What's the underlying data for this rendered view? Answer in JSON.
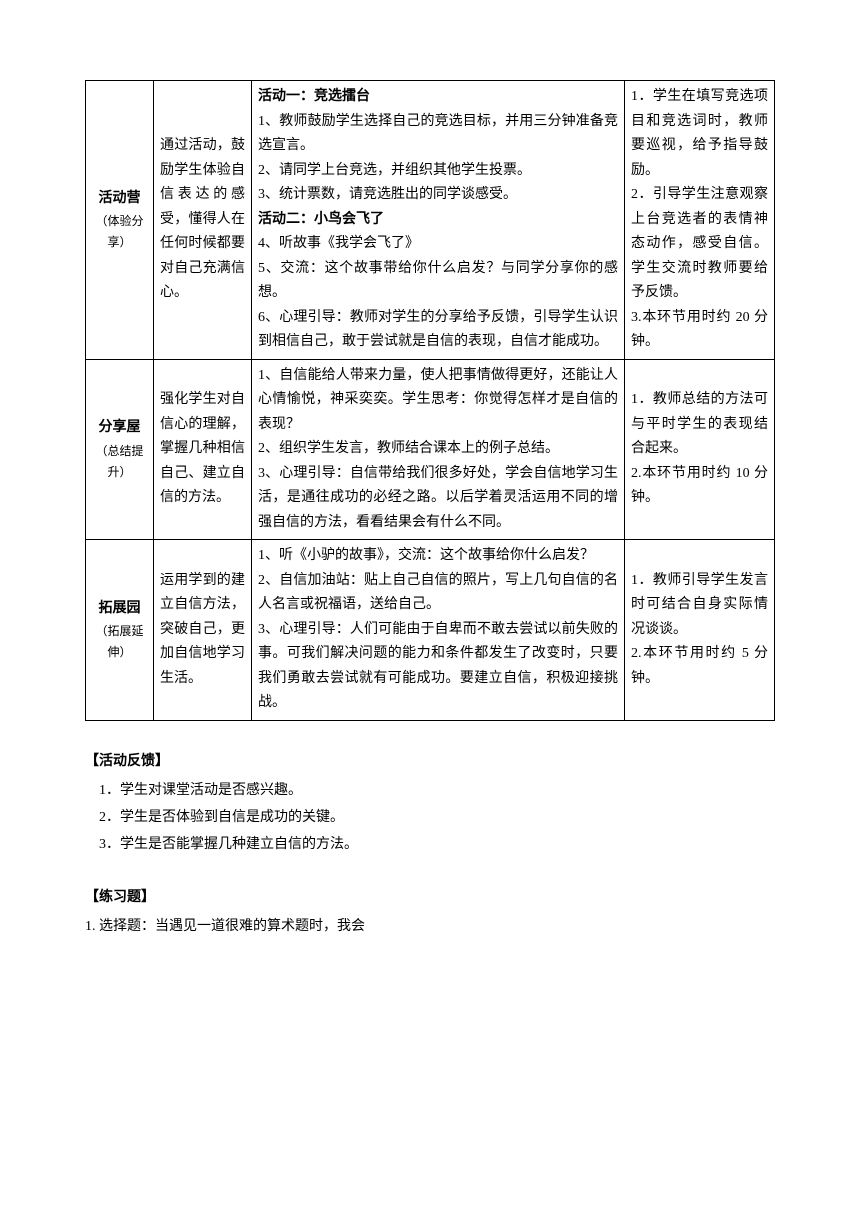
{
  "table": {
    "rows": [
      {
        "col1_title": "活动营",
        "col1_sub": "（体验分享）",
        "col2": "通过活动，鼓励学生体验自信表达的感受，懂得人在任何时候都要对自己充满信心。",
        "col3_act1_title": "活动一：竞选擂台",
        "col3_act1_1": "1、教师鼓励学生选择自己的竞选目标，并用三分钟准备竞选宣言。",
        "col3_act1_2": "2、请同学上台竞选，并组织其他学生投票。",
        "col3_act1_3": "3、统计票数，请竞选胜出的同学谈感受。",
        "col3_act2_title": "活动二：小鸟会飞了",
        "col3_act2_4": "4、听故事《我学会飞了》",
        "col3_act2_5": "5、交流：这个故事带给你什么启发？与同学分享你的感想。",
        "col3_act2_6": "6、心理引导：教师对学生的分享给予反馈，引导学生认识到相信自己，敢于尝试就是自信的表现，自信才能成功。",
        "col4_1": "1．学生在填写竞选项目和竞选词时，教师要巡视，给予指导鼓励。",
        "col4_2": "2．引导学生注意观察上台竞选者的表情神态动作，感受自信。学生交流时教师要给予反馈。",
        "col4_3": "3.本环节用时约 20 分钟。"
      },
      {
        "col1_title": "分享屋",
        "col1_sub": "（总结提升）",
        "col2": "强化学生对自信心的理解，掌握几种相信自己、建立自信的方法。",
        "col3_1": "1、自信能给人带来力量，使人把事情做得更好，还能让人心情愉悦，神采奕奕。学生思考：你觉得怎样才是自信的表现？",
        "col3_2": "2、组织学生发言，教师结合课本上的例子总结。",
        "col3_3": "3、心理引导：自信带给我们很多好处，学会自信地学习生活，是通往成功的必经之路。以后学着灵活运用不同的增强自信的方法，看看结果会有什么不同。",
        "col4_1": "1．教师总结的方法可与平时学生的表现结合起来。",
        "col4_2": "2.本环节用时约 10 分钟。"
      },
      {
        "col1_title": "拓展园",
        "col1_sub": "（拓展延伸）",
        "col2": "运用学到的建立自信方法，突破自己，更加自信地学习生活。",
        "col3_1": "1、听《小驴的故事》，交流：这个故事给你什么启发？",
        "col3_2": "2、自信加油站：贴上自己自信的照片，写上几句自信的名人名言或祝福语，送给自己。",
        "col3_3": "3、心理引导：人们可能由于自卑而不敢去尝试以前失败的事。可我们解决问题的能力和条件都发生了改变时，只要我们勇敢去尝试就有可能成功。要建立自信，积极迎接挑战。",
        "col4_1": "1．教师引导学生发言时可结合自身实际情况谈谈。",
        "col4_2": "2.本环节用时约 5 分钟。"
      }
    ]
  },
  "feedback": {
    "title": "【活动反馈】",
    "items": [
      "1．学生对课堂活动是否感兴趣。",
      "2．学生是否体验到自信是成功的关键。",
      "3．学生是否能掌握几种建立自信的方法。"
    ]
  },
  "exercise": {
    "title": "【练习题】",
    "q1": "1. 选择题：当遇见一道很难的算术题时，我会"
  }
}
